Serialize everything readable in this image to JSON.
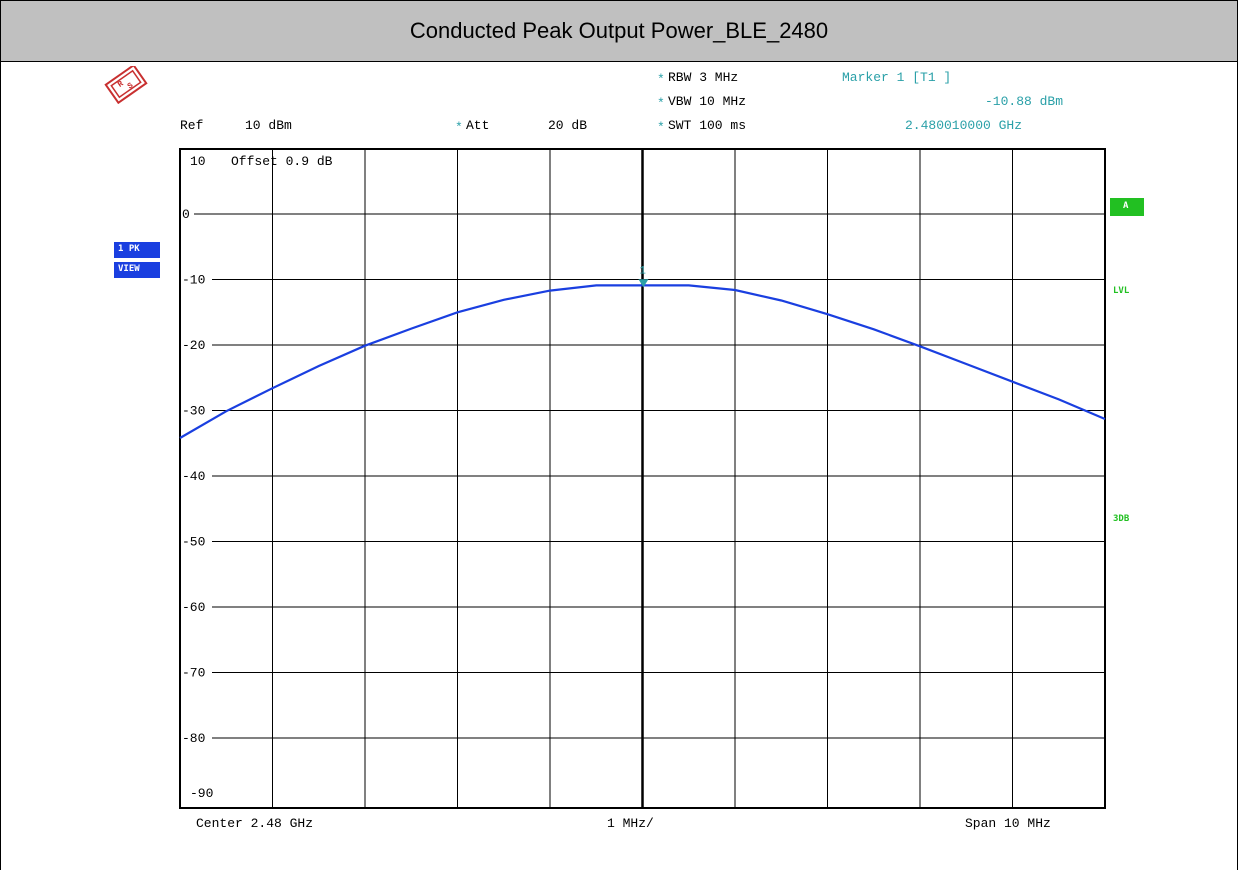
{
  "page": {
    "title": "Conducted Peak Output Power_BLE_2480"
  },
  "settings": {
    "ref": "Ref",
    "ref_value": "10 dBm",
    "att": "Att",
    "att_value": "20 dB",
    "rbw": "RBW 3 MHz",
    "vbw": "VBW 10 MHz",
    "swt": "SWT 100 ms",
    "star": "*",
    "offset": "Offset  0.9 dB"
  },
  "marker": {
    "header": "Marker 1 [T1 ]",
    "level": "-10.88 dBm",
    "frequency": "2.480010000 GHz",
    "id": "1",
    "x_offset_mhz": 0.01,
    "level_dbm": -10.88
  },
  "badges": {
    "trace": "1 PK",
    "view": "VIEW",
    "a": "A",
    "lvl": "LVL",
    "threedb": "3DB"
  },
  "footer": {
    "center": "Center 2.48 GHz",
    "div": "1 MHz/",
    "span": "Span 10 MHz"
  },
  "colors": {
    "trace": "#1a3fe0",
    "marker": "#2aa0a8",
    "badge_blue": "#1a3fe0",
    "badge_green": "#22c022",
    "grid": "#000000"
  },
  "chart_data": {
    "type": "line",
    "title": "Conducted Peak Output Power_BLE_2480",
    "xlabel": "",
    "ylabel": "",
    "xlim": [
      -5,
      5
    ],
    "ylim": [
      -95,
      10
    ],
    "y_ticks": [
      10,
      0,
      -10,
      -20,
      -30,
      -40,
      -50,
      -60,
      -70,
      -80,
      -90
    ],
    "y_tick_labels": [
      "10",
      "0",
      "-10",
      "-20",
      "-30",
      "-40",
      "-50",
      "-60",
      "-70",
      "-80",
      "-90"
    ],
    "grid": true,
    "series": [
      {
        "x": [
          -5,
          -4.5,
          -4,
          -3.5,
          -3,
          -2.5,
          -2,
          -1.5,
          -1,
          -0.5,
          0,
          0.5,
          1,
          1.5,
          2,
          2.5,
          3,
          3.5,
          4,
          4.5,
          5
        ],
        "y": [
          -34.2,
          -30.1,
          -26.6,
          -23.2,
          -20.1,
          -17.5,
          -15.0,
          -13.1,
          -11.7,
          -10.9,
          -10.9,
          -10.9,
          -11.6,
          -13.2,
          -15.3,
          -17.6,
          -20.2,
          -22.9,
          -25.6,
          -28.3,
          -31.3
        ]
      }
    ]
  }
}
